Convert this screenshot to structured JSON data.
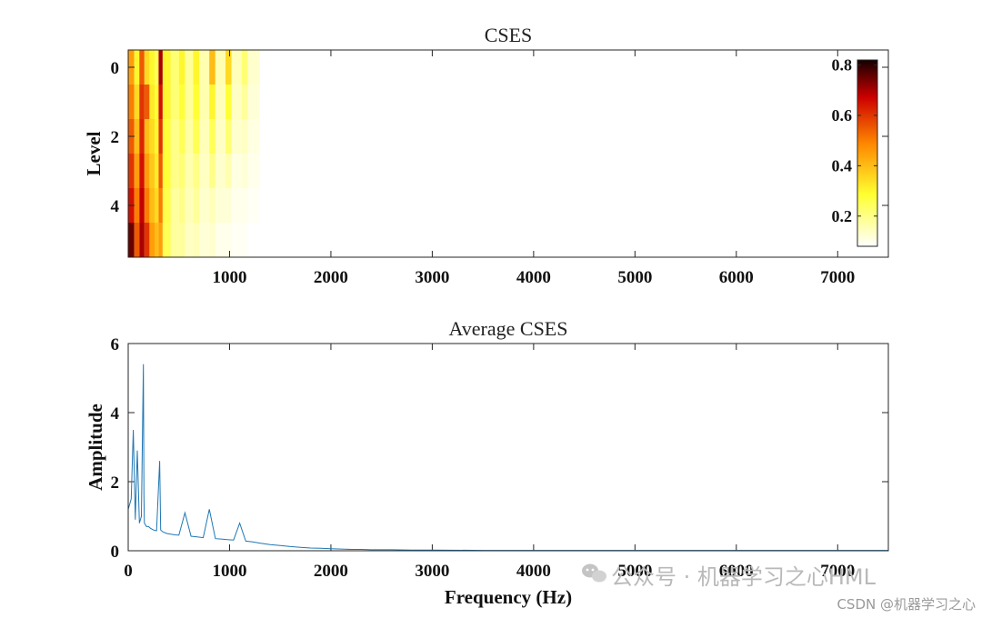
{
  "chart_data": [
    {
      "type": "heatmap",
      "title": "CSES",
      "xlabel": "",
      "ylabel": "Level",
      "xlim": [
        0,
        7500
      ],
      "ylim": [
        -0.5,
        5.5
      ],
      "y_reversed": true,
      "x_ticks": [
        1000,
        2000,
        3000,
        4000,
        5000,
        6000,
        7000
      ],
      "y_ticks": [
        0,
        2,
        4
      ],
      "levels": [
        0,
        1,
        2,
        3,
        4,
        5
      ],
      "colorbar": {
        "min": 0.08,
        "max": 0.82,
        "ticks": [
          0.2,
          0.4,
          0.6,
          0.8
        ],
        "colormap": "hot-reversed",
        "placement": "inside-right"
      },
      "bands": [
        {
          "f_start": 0,
          "f_end": 60,
          "values": [
            0.45,
            0.5,
            0.55,
            0.6,
            0.65,
            0.75
          ]
        },
        {
          "f_start": 60,
          "f_end": 110,
          "values": [
            0.3,
            0.35,
            0.4,
            0.45,
            0.5,
            0.55
          ]
        },
        {
          "f_start": 110,
          "f_end": 160,
          "values": [
            0.55,
            0.6,
            0.62,
            0.65,
            0.68,
            0.7
          ]
        },
        {
          "f_start": 160,
          "f_end": 210,
          "values": [
            0.35,
            0.55,
            0.4,
            0.45,
            0.5,
            0.6
          ]
        },
        {
          "f_start": 210,
          "f_end": 260,
          "values": [
            0.3,
            0.32,
            0.35,
            0.38,
            0.4,
            0.45
          ]
        },
        {
          "f_start": 260,
          "f_end": 300,
          "values": [
            0.25,
            0.28,
            0.3,
            0.32,
            0.35,
            0.4
          ]
        },
        {
          "f_start": 300,
          "f_end": 340,
          "values": [
            0.7,
            0.65,
            0.6,
            0.55,
            0.5,
            0.45
          ]
        },
        {
          "f_start": 340,
          "f_end": 420,
          "values": [
            0.3,
            0.3,
            0.28,
            0.28,
            0.26,
            0.25
          ]
        },
        {
          "f_start": 420,
          "f_end": 500,
          "values": [
            0.22,
            0.22,
            0.2,
            0.2,
            0.18,
            0.18
          ]
        },
        {
          "f_start": 500,
          "f_end": 560,
          "values": [
            0.3,
            0.28,
            0.25,
            0.22,
            0.2,
            0.18
          ]
        },
        {
          "f_start": 560,
          "f_end": 640,
          "values": [
            0.18,
            0.18,
            0.17,
            0.16,
            0.15,
            0.14
          ]
        },
        {
          "f_start": 640,
          "f_end": 700,
          "values": [
            0.3,
            0.28,
            0.25,
            0.2,
            0.18,
            0.15
          ]
        },
        {
          "f_start": 700,
          "f_end": 800,
          "values": [
            0.16,
            0.16,
            0.15,
            0.14,
            0.13,
            0.12
          ]
        },
        {
          "f_start": 800,
          "f_end": 860,
          "values": [
            0.4,
            0.3,
            0.25,
            0.2,
            0.15,
            0.13
          ]
        },
        {
          "f_start": 860,
          "f_end": 960,
          "values": [
            0.16,
            0.15,
            0.14,
            0.13,
            0.12,
            0.1
          ]
        },
        {
          "f_start": 960,
          "f_end": 1020,
          "values": [
            0.35,
            0.28,
            0.22,
            0.16,
            0.12,
            0.1
          ]
        },
        {
          "f_start": 1020,
          "f_end": 1120,
          "values": [
            0.15,
            0.14,
            0.13,
            0.11,
            0.1,
            0.09
          ]
        },
        {
          "f_start": 1120,
          "f_end": 1180,
          "values": [
            0.22,
            0.18,
            0.14,
            0.12,
            0.1,
            0.09
          ]
        },
        {
          "f_start": 1180,
          "f_end": 1300,
          "values": [
            0.13,
            0.12,
            0.11,
            0.1,
            0.09,
            0.08
          ]
        }
      ]
    },
    {
      "type": "line",
      "title": "Average CSES",
      "xlabel": "Frequency (Hz)",
      "ylabel": "Amplitude",
      "xlim": [
        0,
        7500
      ],
      "ylim": [
        0,
        6
      ],
      "x_ticks": [
        0,
        1000,
        2000,
        3000,
        4000,
        5000,
        6000,
        7000
      ],
      "y_ticks": [
        0,
        2,
        4,
        6
      ],
      "series": [
        {
          "color": "#1f77b4",
          "x": [
            0,
            30,
            50,
            70,
            90,
            110,
            130,
            150,
            155,
            160,
            180,
            200,
            220,
            250,
            280,
            310,
            320,
            340,
            380,
            420,
            460,
            500,
            560,
            620,
            680,
            740,
            800,
            860,
            920,
            980,
            1040,
            1100,
            1160,
            1220,
            1300,
            1400,
            1500,
            1600,
            1700,
            1800,
            1900,
            2000,
            2100,
            2200,
            2300,
            2400,
            2600,
            2800,
            3000,
            3500,
            4000,
            5000,
            6000,
            7000,
            7500
          ],
          "y": [
            1.2,
            1.5,
            3.5,
            0.9,
            2.9,
            0.8,
            1.0,
            5.4,
            1.6,
            0.8,
            0.7,
            0.7,
            0.65,
            0.6,
            0.58,
            2.6,
            0.6,
            0.55,
            0.5,
            0.48,
            0.46,
            0.45,
            1.1,
            0.42,
            0.4,
            0.38,
            1.2,
            0.35,
            0.34,
            0.32,
            0.31,
            0.8,
            0.28,
            0.26,
            0.22,
            0.18,
            0.15,
            0.12,
            0.1,
            0.08,
            0.07,
            0.06,
            0.05,
            0.04,
            0.04,
            0.03,
            0.03,
            0.02,
            0.02,
            0.01,
            0.01,
            0.01,
            0.01,
            0.01,
            0.01
          ]
        }
      ]
    }
  ],
  "watermark": {
    "main": "公众号 · 机器学习之心HML",
    "sub": "CSDN @机器学习之心"
  }
}
